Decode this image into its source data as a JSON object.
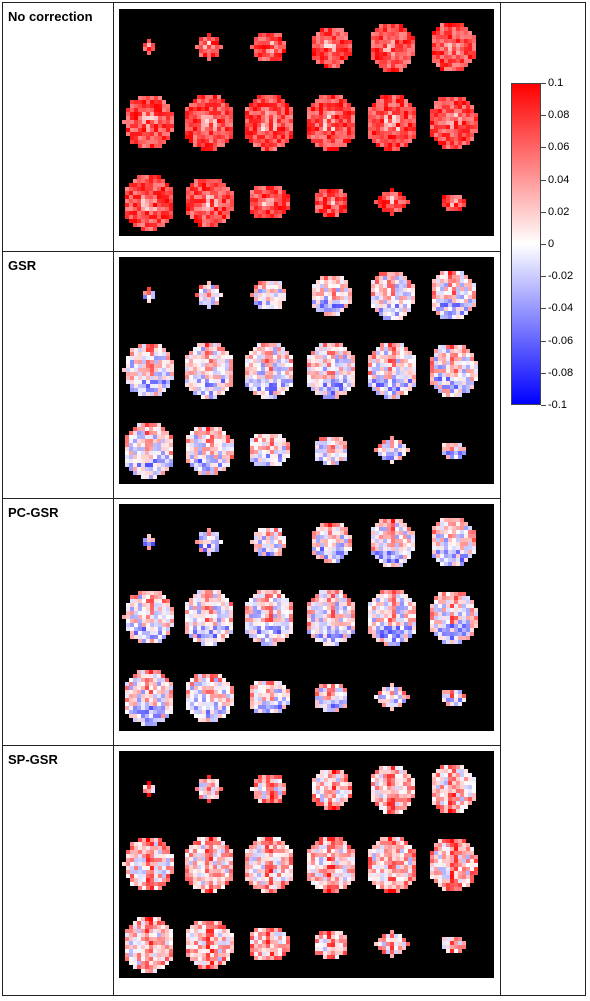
{
  "rows": [
    {
      "label": "No correction"
    },
    {
      "label": "GSR"
    },
    {
      "label": "PC-GSR"
    },
    {
      "label": "SP-GSR"
    }
  ],
  "colorbar": {
    "ticks": [
      "0.1",
      "0.08",
      "0.06",
      "0.04",
      "0.02",
      "0",
      "-0.02",
      "-0.04",
      "-0.06",
      "-0.08",
      "-0.1"
    ],
    "colors": {
      "max": "#ff0000",
      "mid": "#ffffff",
      "min": "#0000ff"
    }
  }
}
